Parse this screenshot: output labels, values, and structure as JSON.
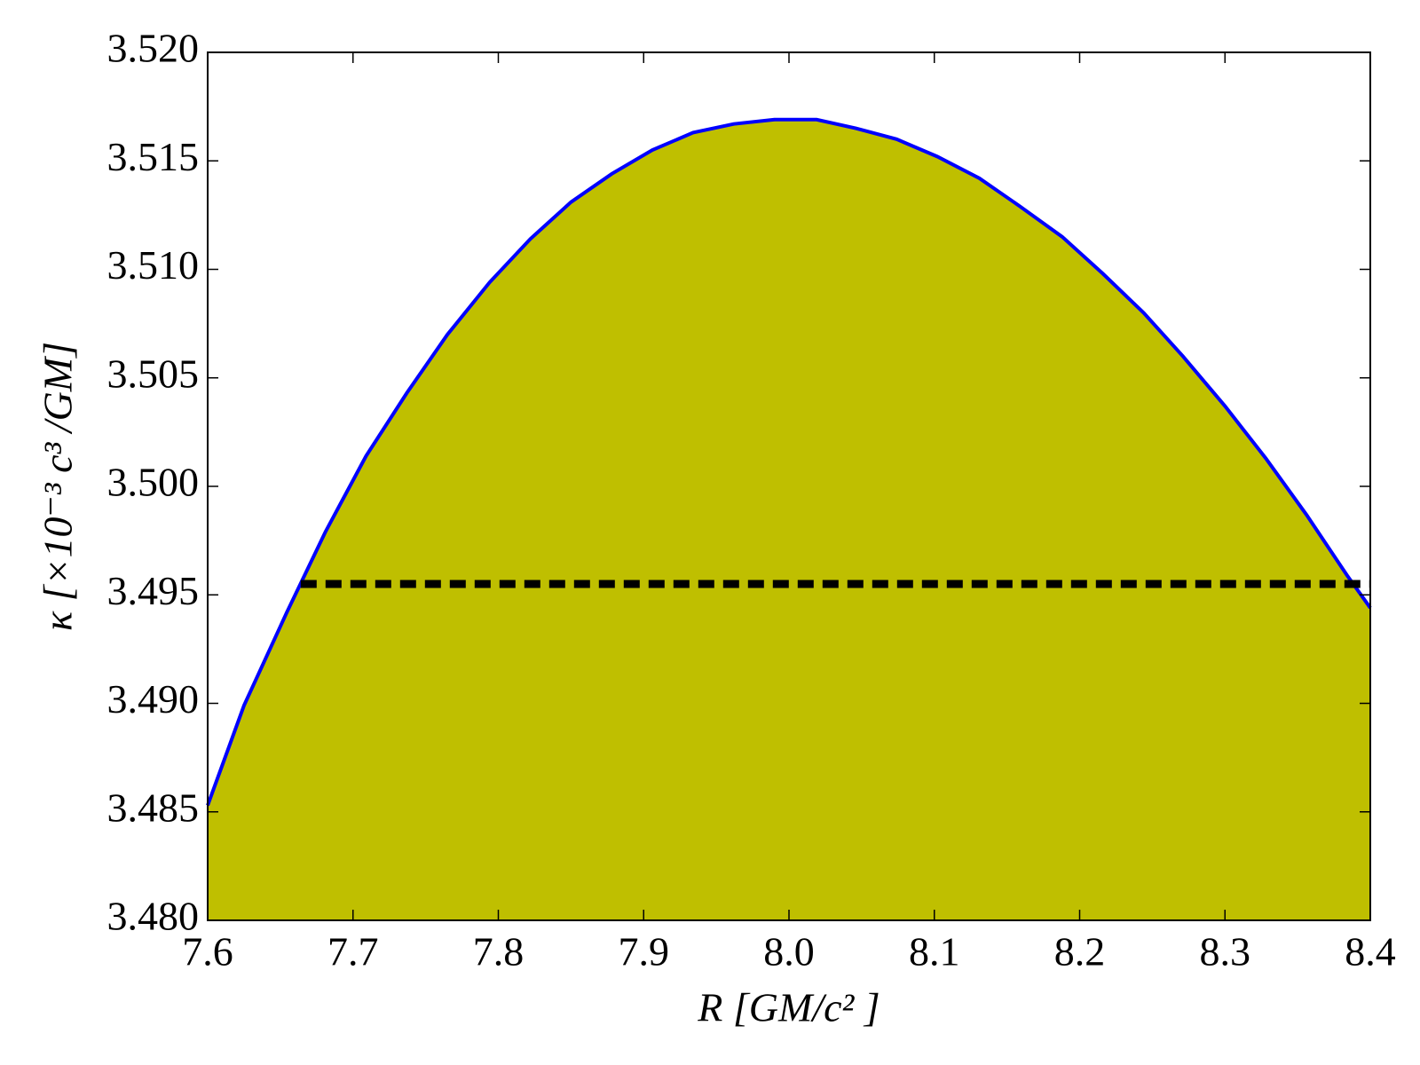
{
  "chart_data": {
    "type": "area",
    "xlabel": "R [GM/c² ]",
    "ylabel": "κ [×10⁻³ c³ /GM]",
    "x": [
      7.6,
      7.625,
      7.6545,
      7.681,
      7.709,
      7.737,
      7.765,
      7.794,
      7.822,
      7.85,
      7.878,
      7.906,
      7.934,
      7.962,
      7.99,
      8.019,
      8.046,
      8.074,
      8.102,
      8.131,
      8.159,
      8.188,
      8.216,
      8.244,
      8.271,
      8.3,
      8.328,
      8.356,
      8.384,
      8.4
    ],
    "series": [
      {
        "color": "#0000ff",
        "fill": "#bfbf00",
        "values": [
          3.4853,
          3.4899,
          3.4942,
          3.4979,
          3.5014,
          3.5043,
          3.507,
          3.5094,
          3.5114,
          3.5131,
          3.5144,
          3.5155,
          3.5163,
          3.5167,
          3.5169,
          3.5169,
          3.5165,
          3.516,
          3.5152,
          3.5142,
          3.5129,
          3.5115,
          3.5098,
          3.508,
          3.506,
          3.5037,
          3.5013,
          3.4987,
          3.4959,
          3.4944
        ]
      }
    ],
    "hline": {
      "y": 3.4955,
      "xmin": 7.664,
      "xmax": 8.4,
      "color": "#000000"
    },
    "xlim": [
      7.6,
      8.4
    ],
    "xticks": [
      7.6,
      7.7,
      7.8,
      7.9,
      {
        "value": 8,
        "label": "8.0"
      },
      8.1,
      8.2,
      8.3,
      8.4
    ],
    "ylim": [
      3.48,
      3.52
    ],
    "yticks": [
      {
        "value": 3.48,
        "label": "3.480"
      },
      3.485,
      {
        "value": 3.49,
        "label": "3.490"
      },
      3.495,
      {
        "value": 3.5,
        "label": "3.500"
      },
      3.505,
      {
        "value": 3.51,
        "label": "3.510"
      },
      3.515,
      {
        "value": 3.52,
        "label": "3.520"
      }
    ],
    "grid": false
  }
}
